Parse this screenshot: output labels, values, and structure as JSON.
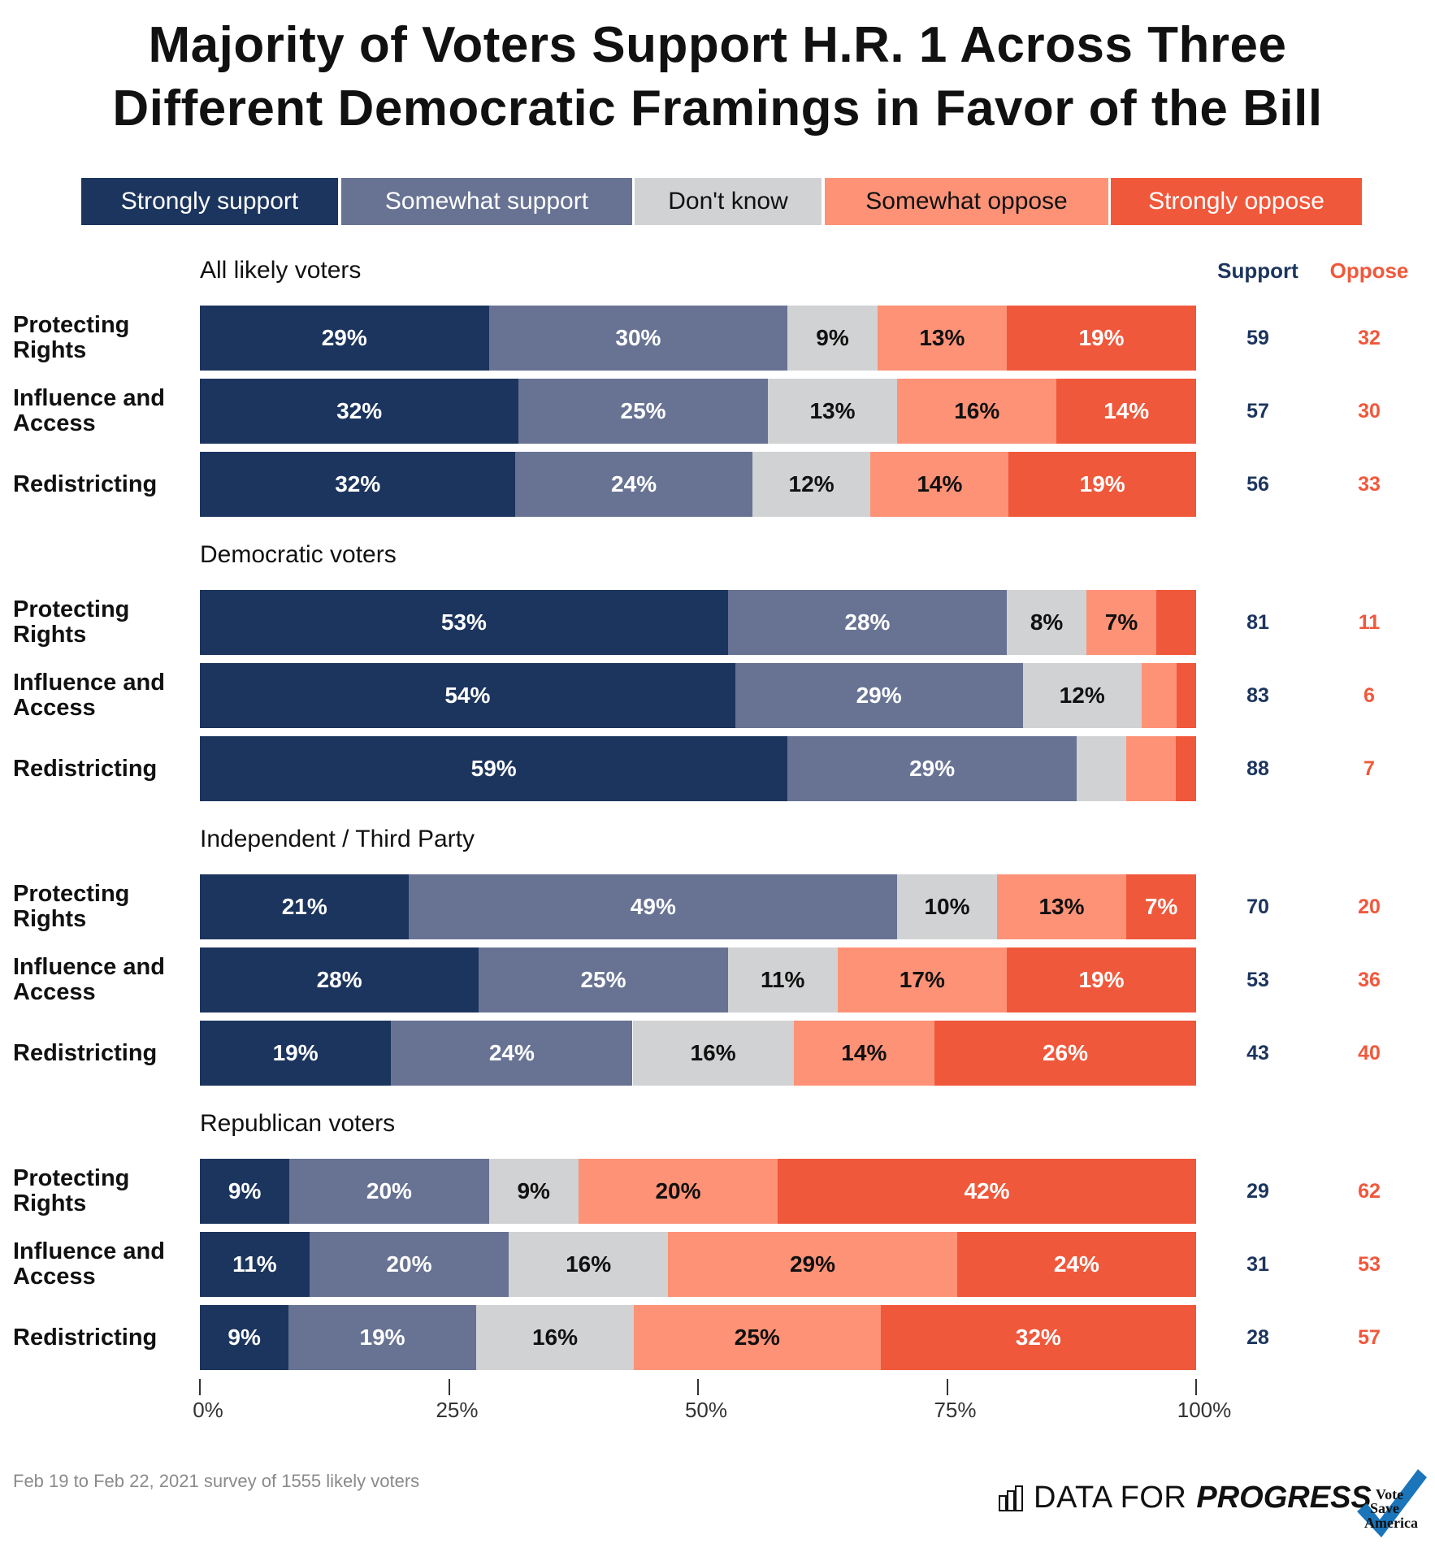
{
  "title_lines": [
    "Majority of Voters Support H.R. 1 Across Three",
    "Different Democratic Framings in Favor of the Bill"
  ],
  "colors": {
    "strongly_support": "#1c355e",
    "somewhat_support": "#687394",
    "dont_know": "#d1d2d4",
    "somewhat_oppose": "#fe9277",
    "strongly_oppose": "#f0583b",
    "support_text": "#1c355e",
    "oppose_text": "#f0583b"
  },
  "legend": [
    {
      "label": "Strongly support",
      "key": "strongly_support",
      "text_color": "#ffffff"
    },
    {
      "label": "Somewhat support",
      "key": "somewhat_support",
      "text_color": "#ffffff"
    },
    {
      "label": "Don't know",
      "key": "dont_know",
      "text_color": "#111111"
    },
    {
      "label": "Somewhat oppose",
      "key": "somewhat_oppose",
      "text_color": "#111111"
    },
    {
      "label": "Strongly oppose",
      "key": "strongly_oppose",
      "text_color": "#ffffff"
    }
  ],
  "column_headers": {
    "support": "Support",
    "oppose": "Oppose"
  },
  "footnote": "Feb 19 to Feb 22, 2021 survey of 1555 likely voters",
  "branding": {
    "dfp_light": "DATA FOR",
    "dfp_bold": "PROGRESS",
    "partner_logo": "Vote Save America"
  },
  "chart_data": {
    "type": "bar",
    "orientation": "horizontal-stacked-100",
    "title": "Majority of Voters Support H.R. 1 Across Three Different Democratic Framings in Favor of the Bill",
    "xlabel": "",
    "ylabel": "",
    "xlim": [
      0,
      100
    ],
    "x_ticks": [
      "0%",
      "25%",
      "50%",
      "75%",
      "100%"
    ],
    "x_tick_values": [
      0,
      25,
      50,
      75,
      100
    ],
    "legend_position": "top",
    "series_names": [
      "Strongly support",
      "Somewhat support",
      "Don't know",
      "Somewhat oppose",
      "Strongly oppose"
    ],
    "groups": [
      {
        "name": "All likely voters",
        "rows": [
          {
            "label": "Protecting Rights",
            "values": [
              29,
              30,
              9,
              13,
              19
            ],
            "labels": [
              "29%",
              "30%",
              "9%",
              "13%",
              "19%"
            ],
            "support": 59,
            "oppose": 32
          },
          {
            "label": "Influence and Access",
            "values": [
              32,
              25,
              13,
              16,
              14
            ],
            "labels": [
              "32%",
              "25%",
              "13%",
              "16%",
              "14%"
            ],
            "support": 57,
            "oppose": 30
          },
          {
            "label": "Redistricting",
            "values": [
              32,
              24,
              12,
              14,
              19
            ],
            "labels": [
              "32%",
              "24%",
              "12%",
              "14%",
              "19%"
            ],
            "support": 56,
            "oppose": 33
          }
        ]
      },
      {
        "name": "Democratic voters",
        "rows": [
          {
            "label": "Protecting Rights",
            "values": [
              53,
              28,
              8,
              7,
              4
            ],
            "labels": [
              "53%",
              "28%",
              "8%",
              "7%",
              ""
            ],
            "support": 81,
            "oppose": 11
          },
          {
            "label": "Influence and Access",
            "values": [
              54,
              29,
              12,
              3.5,
              2
            ],
            "labels": [
              "54%",
              "29%",
              "12%",
              "",
              ""
            ],
            "support": 83,
            "oppose": 6
          },
          {
            "label": "Redistricting",
            "values": [
              59,
              29,
              5,
              5,
              2
            ],
            "labels": [
              "59%",
              "29%",
              "",
              "",
              ""
            ],
            "support": 88,
            "oppose": 7
          }
        ]
      },
      {
        "name": "Independent / Third Party",
        "rows": [
          {
            "label": "Protecting Rights",
            "values": [
              21,
              49,
              10,
              13,
              7
            ],
            "labels": [
              "21%",
              "49%",
              "10%",
              "13%",
              "7%"
            ],
            "support": 70,
            "oppose": 20
          },
          {
            "label": "Influence and Access",
            "values": [
              28,
              25,
              11,
              17,
              19
            ],
            "labels": [
              "28%",
              "25%",
              "11%",
              "17%",
              "19%"
            ],
            "support": 53,
            "oppose": 36
          },
          {
            "label": "Redistricting",
            "values": [
              19,
              24,
              16,
              14,
              26
            ],
            "labels": [
              "19%",
              "24%",
              "16%",
              "14%",
              "26%"
            ],
            "support": 43,
            "oppose": 40
          }
        ]
      },
      {
        "name": "Republican voters",
        "rows": [
          {
            "label": "Protecting Rights",
            "values": [
              9,
              20,
              9,
              20,
              42
            ],
            "labels": [
              "9%",
              "20%",
              "9%",
              "20%",
              "42%"
            ],
            "support": 29,
            "oppose": 62
          },
          {
            "label": "Influence and Access",
            "values": [
              11,
              20,
              16,
              29,
              24
            ],
            "labels": [
              "11%",
              "20%",
              "16%",
              "29%",
              "24%"
            ],
            "support": 31,
            "oppose": 53
          },
          {
            "label": "Redistricting",
            "values": [
              9,
              19,
              16,
              25,
              32
            ],
            "labels": [
              "9%",
              "19%",
              "16%",
              "25%",
              "32%"
            ],
            "support": 28,
            "oppose": 57
          }
        ]
      }
    ]
  }
}
